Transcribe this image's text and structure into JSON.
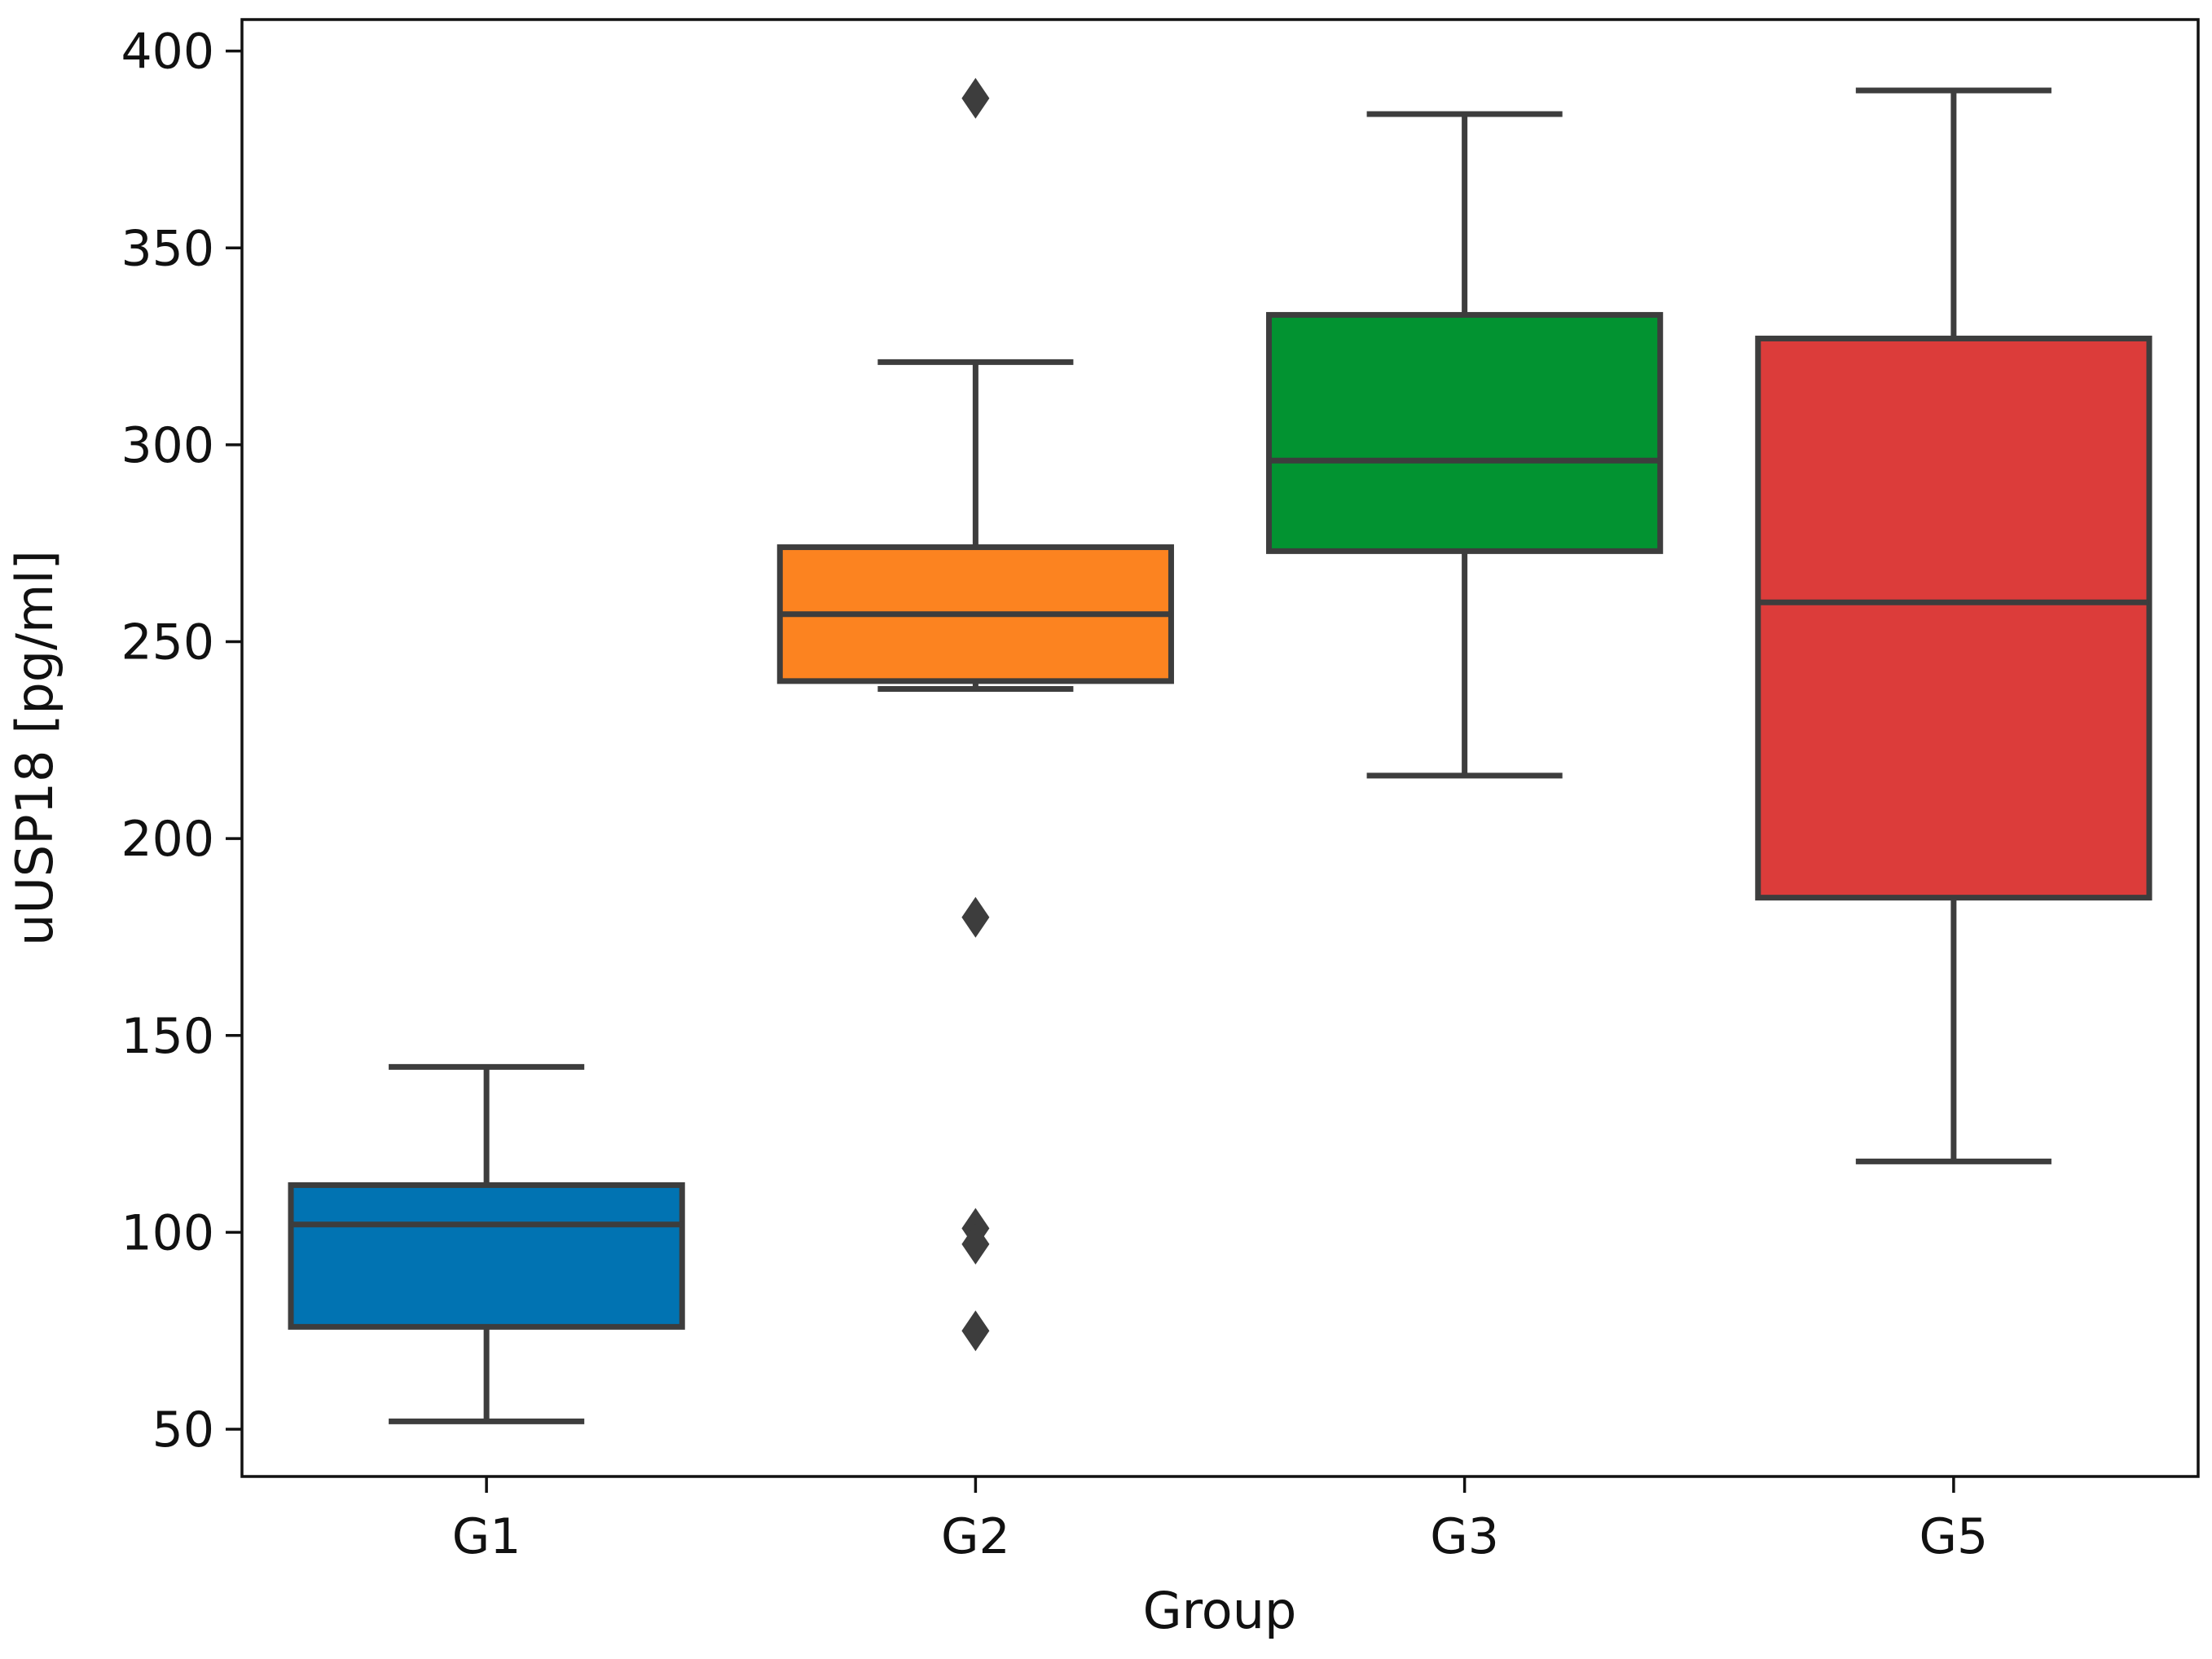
{
  "chart_data": {
    "type": "box",
    "title": "",
    "xlabel": "Group",
    "ylabel": "uUSP18 [pg/ml]",
    "ylim": [
      38,
      408
    ],
    "yticks": [
      50,
      100,
      150,
      200,
      250,
      300,
      350,
      400
    ],
    "categories": [
      "G1",
      "G2",
      "G3",
      "G5"
    ],
    "boxes": [
      {
        "name": "G1",
        "color": "#0173b2",
        "whisker_low": 52,
        "q1": 76,
        "median": 102,
        "q3": 112,
        "whisker_high": 142,
        "outliers": []
      },
      {
        "name": "G2",
        "color": "#fc8320",
        "whisker_low": 238,
        "q1": 240,
        "median": 257,
        "q3": 274,
        "whisker_high": 321,
        "outliers": [
          388,
          180,
          101,
          97,
          75
        ]
      },
      {
        "name": "G3",
        "color": "#029331",
        "whisker_low": 216,
        "q1": 273,
        "median": 296,
        "q3": 333,
        "whisker_high": 384,
        "outliers": []
      },
      {
        "name": "G5",
        "color": "#dc3c3a",
        "whisker_low": 118,
        "q1": 185,
        "median": 260,
        "q3": 327,
        "whisker_high": 390,
        "outliers": []
      }
    ],
    "line_color": "#3d3d3d",
    "grid": false,
    "legend": "none"
  }
}
